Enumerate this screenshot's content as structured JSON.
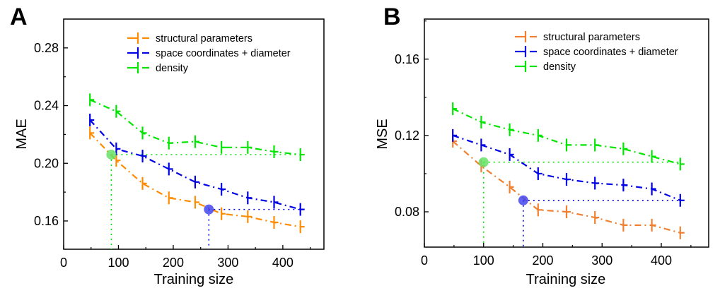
{
  "chart_data": [
    {
      "type": "line",
      "panel_label": "A",
      "title": "",
      "xlabel": "Training size",
      "ylabel": "MAE",
      "xlim": [
        0,
        475
      ],
      "ylim": [
        0.1404,
        0.3
      ],
      "xticks": [
        0,
        100,
        200,
        300,
        400
      ],
      "xtick_labels": [
        "0",
        "100",
        "200",
        "300",
        "400"
      ],
      "yticks": [
        0.16,
        0.2,
        0.24,
        0.28
      ],
      "ytick_labels": [
        "0.16",
        "0.20",
        "0.24",
        "0.28"
      ],
      "grid": false,
      "legend_position": "top-right",
      "x": [
        48,
        96,
        144,
        192,
        240,
        288,
        336,
        384,
        432
      ],
      "series": [
        {
          "name": "structural parameters",
          "color": "#FF8C00",
          "values": [
            0.221,
            0.202,
            0.186,
            0.176,
            0.173,
            0.165,
            0.163,
            0.159,
            0.156
          ]
        },
        {
          "name": "space coordinates + diameter",
          "color": "#0000E6",
          "values": [
            0.23,
            0.21,
            0.205,
            0.196,
            0.187,
            0.182,
            0.176,
            0.173,
            0.168
          ]
        },
        {
          "name": "density",
          "color": "#00E600",
          "values": [
            0.244,
            0.236,
            0.221,
            0.214,
            0.215,
            0.211,
            0.211,
            0.208,
            0.206
          ]
        }
      ],
      "annotations": [
        {
          "type": "marker",
          "color": "#66E066",
          "x": 87,
          "y": 0.206,
          "guide_color": "#00E600"
        },
        {
          "type": "marker",
          "color": "#4444EE",
          "x": 265,
          "y": 0.168,
          "guide_color": "#0000E6"
        }
      ]
    },
    {
      "type": "line",
      "panel_label": "B",
      "title": "",
      "xlabel": "Training size",
      "ylabel": "MSE",
      "xlim": [
        0,
        480
      ],
      "ylim": [
        0.0615,
        0.181
      ],
      "xticks": [
        0,
        100,
        200,
        300,
        400
      ],
      "xtick_labels": [
        "0",
        "100",
        "200",
        "300",
        "400"
      ],
      "yticks": [
        0.08,
        0.12,
        0.16
      ],
      "ytick_labels": [
        "0.08",
        "0.12",
        "0.16"
      ],
      "grid": false,
      "legend_position": "top-right",
      "x": [
        48,
        96,
        144,
        192,
        240,
        288,
        336,
        384,
        432
      ],
      "series": [
        {
          "name": "structural parameters",
          "color": "#F08030",
          "values": [
            0.117,
            0.104,
            0.093,
            0.081,
            0.08,
            0.077,
            0.073,
            0.073,
            0.069
          ]
        },
        {
          "name": "space coordinates + diameter",
          "color": "#0000E6",
          "values": [
            0.12,
            0.115,
            0.11,
            0.1,
            0.097,
            0.095,
            0.094,
            0.092,
            0.086
          ]
        },
        {
          "name": "density",
          "color": "#00E600",
          "values": [
            0.134,
            0.127,
            0.123,
            0.12,
            0.115,
            0.115,
            0.113,
            0.109,
            0.105
          ]
        }
      ],
      "annotations": [
        {
          "type": "marker",
          "color": "#66E066",
          "x": 100,
          "y": 0.106,
          "guide_color": "#00E600"
        },
        {
          "type": "marker",
          "color": "#4444EE",
          "x": 167,
          "y": 0.086,
          "guide_color": "#0000E6"
        }
      ]
    }
  ]
}
